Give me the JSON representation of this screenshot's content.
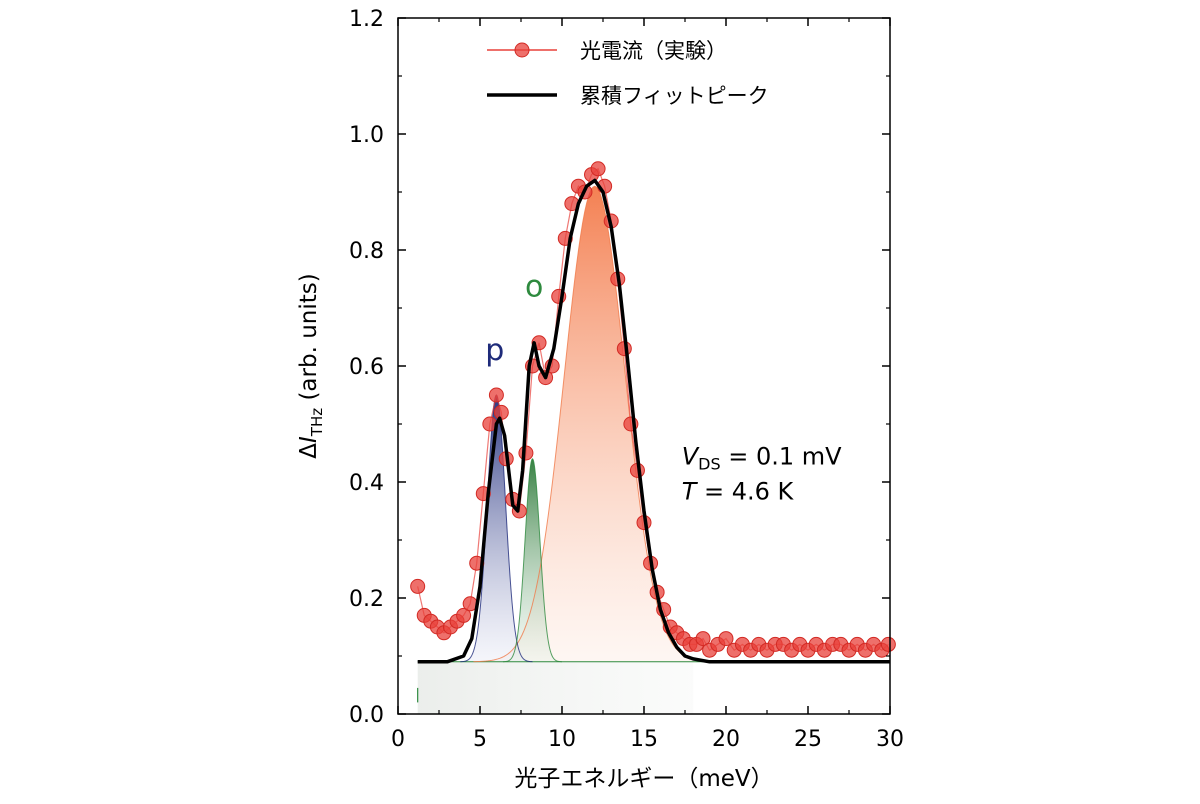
{
  "chart_data": {
    "type": "line",
    "xlabel": "光子エネルギー（meV）",
    "ylabel": "ΔI_THz (arb. units)",
    "ylabel_parts": {
      "delta": "Δ",
      "symbol": "I",
      "subscript": "THz",
      "rest": " (arb. units)"
    },
    "xlim": [
      0,
      30
    ],
    "ylim": [
      0,
      1.2
    ],
    "xticks": [
      0,
      5,
      10,
      15,
      20,
      25,
      30
    ],
    "yticks": [
      0.0,
      0.2,
      0.4,
      0.6,
      0.8,
      1.0,
      1.2
    ],
    "xtick_labels": [
      "0",
      "5",
      "10",
      "15",
      "20",
      "25",
      "30"
    ],
    "ytick_labels": [
      "0.0",
      "0.2",
      "0.4",
      "0.6",
      "0.8",
      "1.0",
      "1.2"
    ],
    "grid": false,
    "legend_position": "top-center",
    "baseline": 0.09,
    "series": [
      {
        "name": "光電流（実験）",
        "style": "line-with-markers",
        "color": "#e8403a",
        "x": [
          1.2,
          1.6,
          2.0,
          2.4,
          2.8,
          3.2,
          3.6,
          4.0,
          4.4,
          4.8,
          5.2,
          5.6,
          6.0,
          6.3,
          6.6,
          7.0,
          7.4,
          7.8,
          8.2,
          8.6,
          9.0,
          9.4,
          9.8,
          10.2,
          10.6,
          11.0,
          11.4,
          11.8,
          12.2,
          12.6,
          13.0,
          13.4,
          13.8,
          14.2,
          14.6,
          15.0,
          15.4,
          15.8,
          16.2,
          16.6,
          17.0,
          17.4,
          17.8,
          18.2,
          18.6,
          19.0,
          19.5,
          20.0,
          20.5,
          21.0,
          21.5,
          22.0,
          22.5,
          23.0,
          23.5,
          24.0,
          24.5,
          25.0,
          25.5,
          26.0,
          26.5,
          27.0,
          27.5,
          28.0,
          28.5,
          29.0,
          29.5,
          29.9
        ],
        "y": [
          0.22,
          0.17,
          0.16,
          0.15,
          0.14,
          0.15,
          0.16,
          0.17,
          0.19,
          0.26,
          0.38,
          0.5,
          0.55,
          0.52,
          0.44,
          0.37,
          0.35,
          0.45,
          0.6,
          0.64,
          0.58,
          0.6,
          0.72,
          0.82,
          0.88,
          0.91,
          0.9,
          0.93,
          0.94,
          0.91,
          0.85,
          0.75,
          0.63,
          0.5,
          0.42,
          0.33,
          0.26,
          0.21,
          0.18,
          0.15,
          0.14,
          0.13,
          0.12,
          0.12,
          0.13,
          0.11,
          0.12,
          0.13,
          0.11,
          0.12,
          0.11,
          0.12,
          0.11,
          0.12,
          0.12,
          0.11,
          0.12,
          0.11,
          0.12,
          0.11,
          0.12,
          0.12,
          0.11,
          0.12,
          0.11,
          0.12,
          0.11,
          0.12
        ]
      },
      {
        "name": "累積フィットピーク",
        "style": "line",
        "color": "#000000",
        "x": [
          1.2,
          2.0,
          3.0,
          4.0,
          4.5,
          5.0,
          5.5,
          6.0,
          6.2,
          6.5,
          7.0,
          7.3,
          7.6,
          8.0,
          8.3,
          8.6,
          9.0,
          9.5,
          10.0,
          10.5,
          11.0,
          11.5,
          12.0,
          12.5,
          13.0,
          13.5,
          14.0,
          14.5,
          15.0,
          15.5,
          16.0,
          16.5,
          17.0,
          17.5,
          18.0,
          19.0,
          20.0,
          22.0,
          25.0,
          30.0
        ],
        "y": [
          0.09,
          0.09,
          0.09,
          0.1,
          0.13,
          0.22,
          0.38,
          0.5,
          0.51,
          0.48,
          0.36,
          0.35,
          0.42,
          0.6,
          0.64,
          0.6,
          0.58,
          0.63,
          0.72,
          0.82,
          0.88,
          0.91,
          0.92,
          0.9,
          0.84,
          0.74,
          0.61,
          0.47,
          0.35,
          0.25,
          0.18,
          0.14,
          0.115,
          0.1,
          0.095,
          0.09,
          0.09,
          0.09,
          0.09,
          0.09
        ]
      }
    ],
    "fit_peaks": [
      {
        "label": "p",
        "center": 6.0,
        "height": 0.46,
        "sigma": 0.55,
        "color": "#1e2b7a"
      },
      {
        "label": "o",
        "center": 8.2,
        "height": 0.35,
        "sigma": 0.45,
        "color": "#2e8a3e"
      },
      {
        "label": "",
        "center": 12.0,
        "height": 0.82,
        "sigma": 1.85,
        "color": "#f07a4a"
      }
    ],
    "annotations": [
      {
        "id": "peak-p",
        "text": "p",
        "color": "#1e2b7a"
      },
      {
        "id": "peak-o",
        "text": "o",
        "color": "#2e8a3e"
      }
    ],
    "conditions": {
      "vds_symbol": "V",
      "vds_sub": "DS",
      "vds_value": " = 0.1 mV",
      "t_symbol": "T",
      "t_value": " = 4.6 K"
    }
  }
}
